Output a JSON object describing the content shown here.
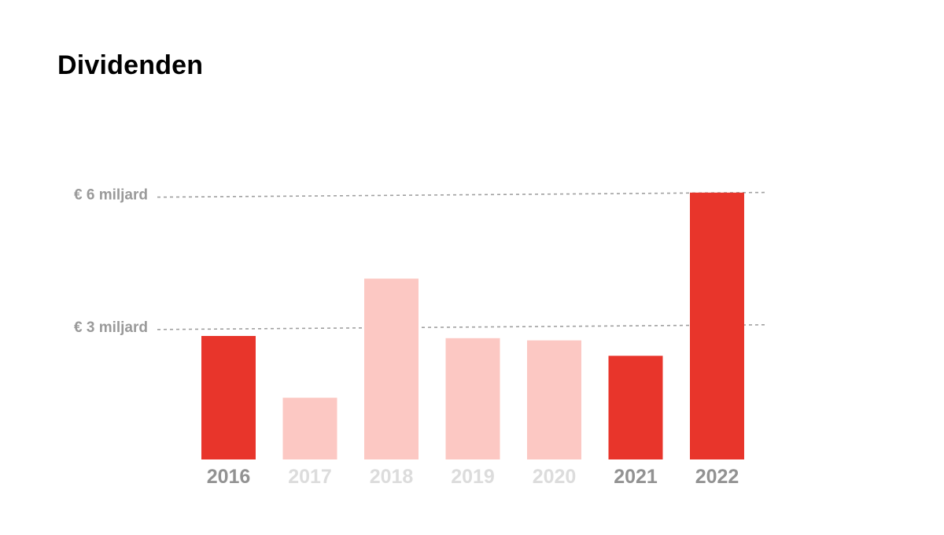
{
  "chart_data": {
    "type": "bar",
    "title": "Dividenden",
    "categories": [
      "2016",
      "2017",
      "2018",
      "2019",
      "2020",
      "2021",
      "2022"
    ],
    "values": [
      2.8,
      1.4,
      4.1,
      2.75,
      2.7,
      2.35,
      6.05
    ],
    "highlighted": [
      true,
      false,
      false,
      false,
      false,
      true,
      true
    ],
    "reference_lines": [
      {
        "value": 6,
        "label": "€ 6 miljard"
      },
      {
        "value": 3,
        "label": "€ 3 miljard"
      }
    ],
    "ylim": [
      0,
      6.1
    ],
    "grid": false,
    "legend": "none",
    "colors": {
      "highlight_bar": "#e8352b",
      "muted_bar": "#fcc8c3",
      "highlight_label": "#929292",
      "muted_label": "#dcdcdc",
      "reference_line": "#a0a0a0",
      "reference_label": "#9a9a9a",
      "title": "#000000"
    }
  }
}
